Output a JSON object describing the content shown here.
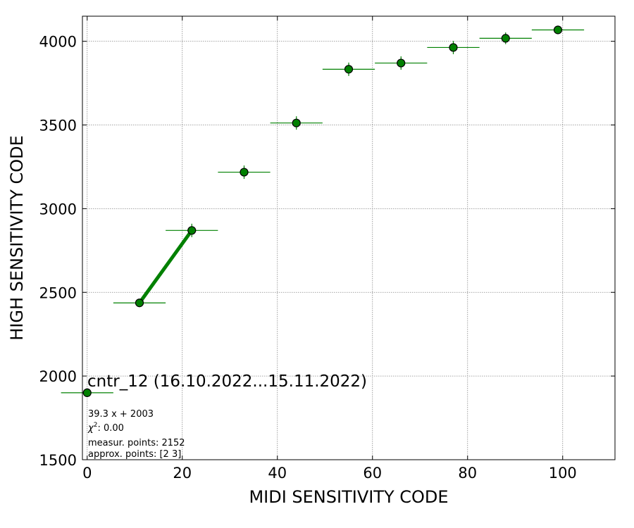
{
  "chart_data": {
    "type": "scatter",
    "title": "cntr_12 (16.10.2022...15.11.2022)",
    "xlabel": "MIDI SENSITIVITY CODE",
    "ylabel": "HIGH SENSITIVITY CODE",
    "xlim": [
      -1,
      111
    ],
    "ylim": [
      1500,
      4150
    ],
    "xticks": [
      0,
      20,
      40,
      60,
      80,
      100
    ],
    "yticks": [
      1500,
      2000,
      2500,
      3000,
      3500,
      4000
    ],
    "xtick_labels": [
      "0",
      "20",
      "40",
      "60",
      "80",
      "100"
    ],
    "ytick_labels": [
      "1500",
      "2000",
      "2500",
      "3000",
      "3500",
      "4000"
    ],
    "grid": true,
    "series": [
      {
        "color": "#008000",
        "x": [
          0,
          11,
          22,
          33,
          44,
          55,
          66,
          77,
          88,
          99
        ],
        "y": [
          1900,
          2437,
          2870,
          3218,
          3512,
          3833,
          3870,
          3963,
          4018,
          4068
        ],
        "xerr": [
          5.5,
          5.5,
          5.5,
          5.5,
          5.5,
          5.5,
          5.5,
          5.5,
          5.5,
          5.5
        ],
        "yerr": [
          10,
          20,
          40,
          40,
          40,
          40,
          40,
          40,
          35,
          15
        ]
      }
    ],
    "fit_line": {
      "color": "#008000",
      "x": [
        11,
        22
      ],
      "y": [
        2437,
        2870
      ]
    },
    "annotations": {
      "equation": "39.3 x + 2003",
      "chi2_symbol": "χ",
      "chi2_exp": "2",
      "chi2_value": ": 0.00",
      "measur_points": "measur. points: 2152",
      "approx_points": "approx. points: [2 3]"
    }
  }
}
